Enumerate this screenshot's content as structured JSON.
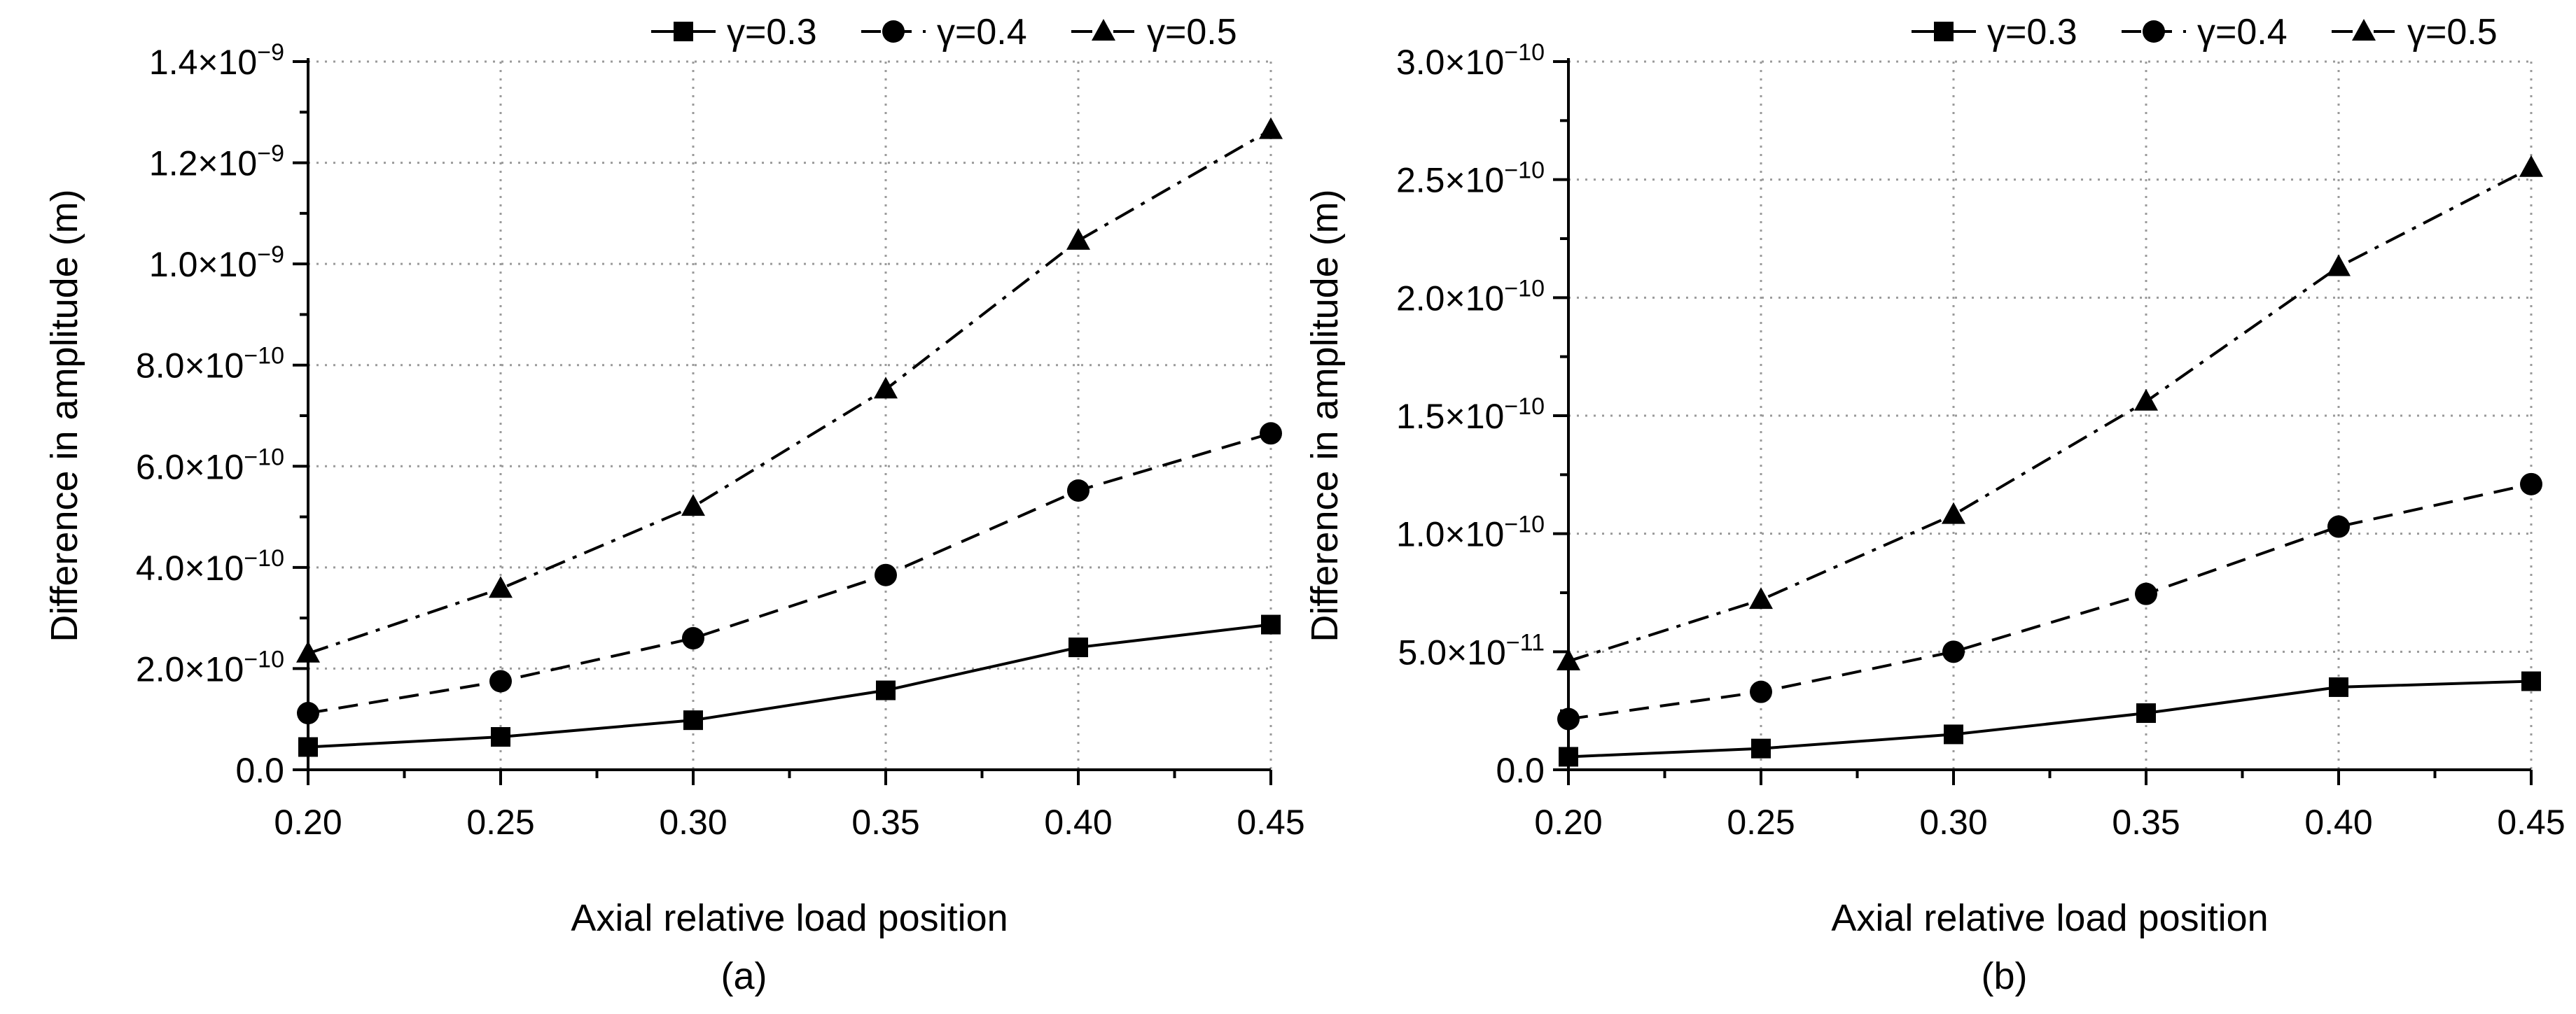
{
  "chart_data": [
    {
      "type": "line",
      "panel_label": "(a)",
      "xlabel": "Axial relative load position",
      "ylabel": "Difference in amplitude (m)",
      "x": [
        0.2,
        0.25,
        0.3,
        0.35,
        0.4,
        0.45
      ],
      "xlim": [
        0.2,
        0.45
      ],
      "xticks": [
        "0.20",
        "0.25",
        "0.30",
        "0.35",
        "0.40",
        "0.45"
      ],
      "ylim": [
        0,
        1.4e-09
      ],
      "yticks": [
        {
          "value": 0,
          "mant": "0.0",
          "exp": ""
        },
        {
          "value": 2e-10,
          "mant": "2.0×10",
          "exp": "−10"
        },
        {
          "value": 4e-10,
          "mant": "4.0×10",
          "exp": "−10"
        },
        {
          "value": 6e-10,
          "mant": "6.0×10",
          "exp": "−10"
        },
        {
          "value": 8e-10,
          "mant": "8.0×10",
          "exp": "−10"
        },
        {
          "value": 1e-09,
          "mant": "1.0×10",
          "exp": "−9"
        },
        {
          "value": 1.2e-09,
          "mant": "1.2×10",
          "exp": "−9"
        },
        {
          "value": 1.4e-09,
          "mant": "1.4×10",
          "exp": "−9"
        }
      ],
      "grid": true,
      "legend_position": "top",
      "series": [
        {
          "name": "γ=0.3",
          "marker": "square",
          "dash": "solid",
          "values": [
            4.5e-11,
            6.5e-11,
            9.8e-11,
            1.57e-10,
            2.42e-10,
            2.87e-10
          ]
        },
        {
          "name": "γ=0.4",
          "marker": "circle",
          "dash": "dashed",
          "values": [
            1.12e-10,
            1.75e-10,
            2.6e-10,
            3.85e-10,
            5.52e-10,
            6.65e-10
          ]
        },
        {
          "name": "γ=0.5",
          "marker": "triangle",
          "dash": "dashdot",
          "values": [
            2.3e-10,
            3.58e-10,
            5.2e-10,
            7.52e-10,
            1.046e-09,
            1.265e-09
          ]
        }
      ]
    },
    {
      "type": "line",
      "panel_label": "(b)",
      "xlabel": "Axial relative load position",
      "ylabel": "Difference in amplitude (m)",
      "x": [
        0.2,
        0.25,
        0.3,
        0.35,
        0.4,
        0.45
      ],
      "xlim": [
        0.2,
        0.45
      ],
      "xticks": [
        "0.20",
        "0.25",
        "0.30",
        "0.35",
        "0.40",
        "0.45"
      ],
      "ylim": [
        0,
        3e-10
      ],
      "yticks": [
        {
          "value": 0,
          "mant": "0.0",
          "exp": ""
        },
        {
          "value": 5e-11,
          "mant": "5.0×10",
          "exp": "−11"
        },
        {
          "value": 1e-10,
          "mant": "1.0×10",
          "exp": "−10"
        },
        {
          "value": 1.5e-10,
          "mant": "1.5×10",
          "exp": "−10"
        },
        {
          "value": 2e-10,
          "mant": "2.0×10",
          "exp": "−10"
        },
        {
          "value": 2.5e-10,
          "mant": "2.5×10",
          "exp": "−10"
        },
        {
          "value": 3e-10,
          "mant": "3.0×10",
          "exp": "−10"
        }
      ],
      "grid": true,
      "legend_position": "top",
      "series": [
        {
          "name": "γ=0.3",
          "marker": "square",
          "dash": "solid",
          "values": [
            5.5e-12,
            9e-12,
            1.5e-11,
            2.4e-11,
            3.5e-11,
            3.75e-11
          ]
        },
        {
          "name": "γ=0.4",
          "marker": "circle",
          "dash": "dashed",
          "values": [
            2.15e-11,
            3.3e-11,
            5e-11,
            7.45e-11,
            1.03e-10,
            1.21e-10
          ]
        },
        {
          "name": "γ=0.5",
          "marker": "triangle",
          "dash": "dashdot",
          "values": [
            4.6e-11,
            7.2e-11,
            1.08e-10,
            1.56e-10,
            2.13e-10,
            2.55e-10
          ]
        }
      ]
    }
  ]
}
